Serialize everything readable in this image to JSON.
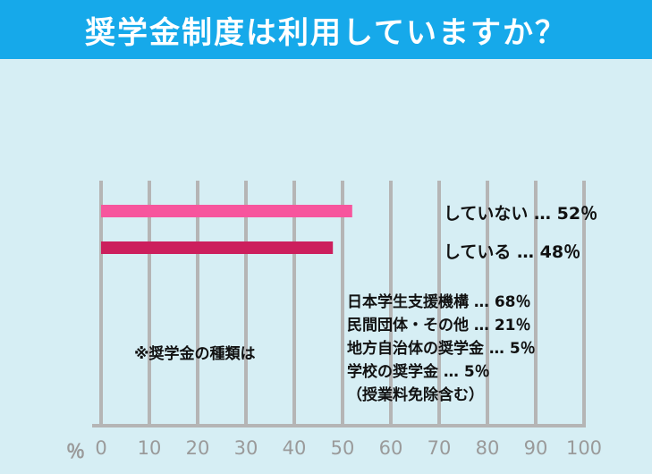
{
  "header": {
    "title": "奨学金制度は利用していますか？"
  },
  "chart_data": {
    "type": "bar",
    "orientation": "horizontal",
    "categories": [
      "していない",
      "している"
    ],
    "values": [
      52,
      48
    ],
    "bar_colors": [
      "#f7559d",
      "#cc1f5d"
    ],
    "bar_labels": [
      "していない …  52％",
      "している …  48％"
    ],
    "xlim": [
      0,
      100
    ],
    "x_ticks": [
      "0",
      "10",
      "20",
      "30",
      "40",
      "50",
      "60",
      "70",
      "80",
      "90",
      "100"
    ],
    "x_unit": "％",
    "grid": true
  },
  "note": {
    "title": "※奨学金の種類は",
    "items": [
      "日本学生支援機構 …  68％",
      "民間団体・その他 …  21％",
      "地方自治体の奨学金 …  5％",
      "学校の奨学金 …  5％",
      "（授業料免除含む）"
    ]
  },
  "colors": {
    "header": "#16a9ea",
    "background": "#d6eef4",
    "grid": "#b5b5b5"
  }
}
